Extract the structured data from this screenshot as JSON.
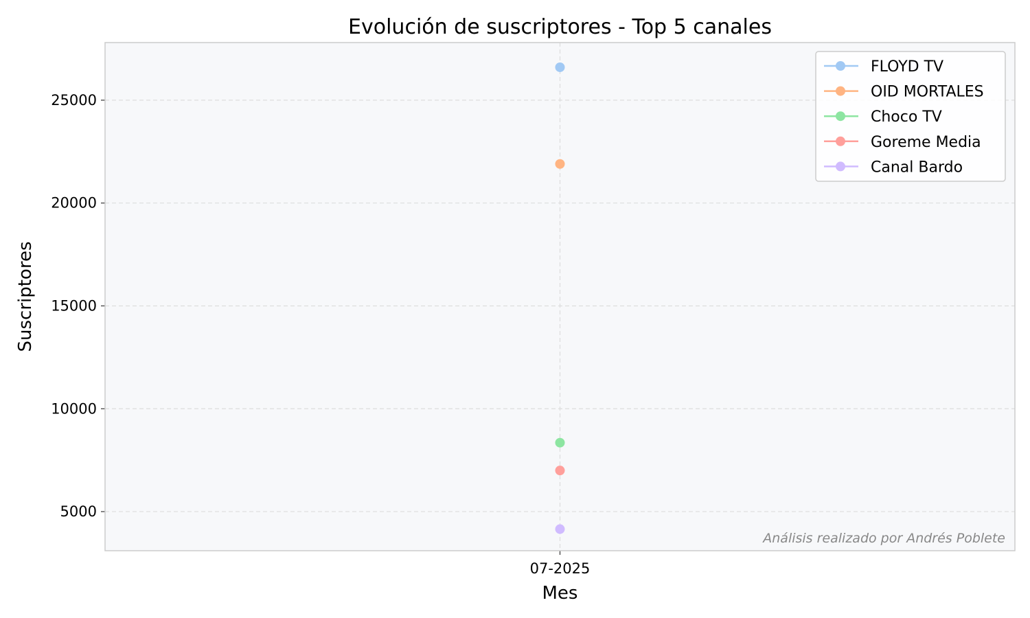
{
  "chart_data": {
    "type": "line",
    "title": "Evolución de suscriptores - Top 5 canales",
    "xlabel": "Mes",
    "ylabel": "Suscriptores",
    "categories": [
      "07-2025"
    ],
    "ylim": [
      3100,
      27800
    ],
    "yticks": [
      5000,
      10000,
      15000,
      20000,
      25000
    ],
    "grid": true,
    "legend_position": "top-right",
    "annotation": "Análisis realizado por Andrés Poblete",
    "series": [
      {
        "name": "FLOYD TV",
        "color": "#a1c9f4",
        "values": [
          26600
        ]
      },
      {
        "name": "OID MORTALES",
        "color": "#ffb482",
        "values": [
          21900
        ]
      },
      {
        "name": "Choco TV",
        "color": "#8de5a1",
        "values": [
          8350
        ]
      },
      {
        "name": "Goreme Media",
        "color": "#ff9f9b",
        "values": [
          7000
        ]
      },
      {
        "name": "Canal Bardo",
        "color": "#d0bbff",
        "values": [
          4150
        ]
      }
    ]
  },
  "colors": {
    "plot_background": "#f7f8fa",
    "axes_edge": "#cccccc",
    "grid": "#dddddd"
  }
}
